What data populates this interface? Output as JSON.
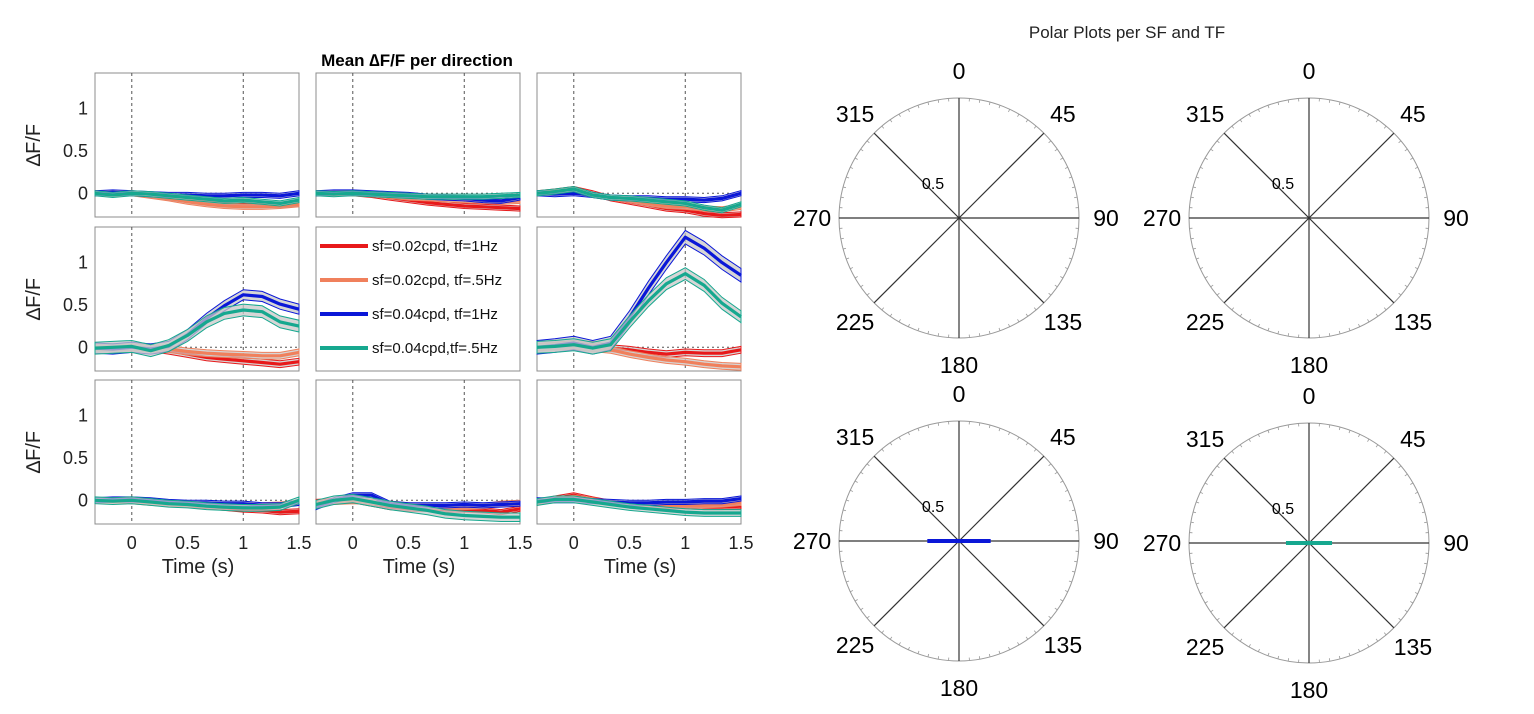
{
  "colors": {
    "sf002_tf1": "#e8191a",
    "sf002_tf05": "#f0805c",
    "sf004_tf1": "#0a17d8",
    "sf004_tf05": "#16a88f"
  },
  "chart_data": [
    {
      "type": "line",
      "title": "Mean ∆F/F per direction",
      "grid_rows": 3,
      "grid_cols": 3,
      "xlabel": "Time (s)",
      "ylabel": "∆F/F",
      "xlim": [
        -0.33,
        1.5
      ],
      "ylim": [
        -0.28,
        1.42
      ],
      "xticks": [
        "0",
        "0.5",
        "1",
        "1.5"
      ],
      "xtick_values": [
        0,
        0.5,
        1,
        1.5
      ],
      "yticks": [
        "0",
        "0.5",
        "1"
      ],
      "ytick_values": [
        0,
        0.5,
        1
      ],
      "vlines": [
        0,
        1
      ],
      "hline": 0,
      "legend_panel": [
        1,
        1
      ],
      "x": [
        -0.33,
        -0.17,
        0,
        0.17,
        0.33,
        0.5,
        0.67,
        0.83,
        1.0,
        1.17,
        1.33,
        1.5
      ],
      "series_names": [
        "sf=0.02cpd, tf=1Hz",
        "sf=0.02cpd, tf=.5Hz",
        "sf=0.04cpd, tf=1Hz",
        "sf=0.04cpd,tf=.5Hz"
      ],
      "panels": [
        {
          "row": 0,
          "col": 0,
          "series": [
            {
              "name": "sf=0.02cpd, tf=1Hz",
              "values": [
                0,
                0,
                0,
                -0.02,
                -0.05,
                -0.08,
                -0.1,
                -0.12,
                -0.13,
                -0.13,
                -0.14,
                -0.12
              ],
              "err": 0.03
            },
            {
              "name": "sf=0.02cpd, tf=.5Hz",
              "values": [
                0,
                0,
                0,
                -0.03,
                -0.06,
                -0.1,
                -0.13,
                -0.15,
                -0.16,
                -0.16,
                -0.15,
                -0.13
              ],
              "err": 0.03
            },
            {
              "name": "sf=0.04cpd, tf=1Hz",
              "values": [
                0,
                0.01,
                0,
                -0.01,
                -0.02,
                -0.02,
                -0.03,
                -0.03,
                -0.02,
                -0.02,
                -0.03,
                0
              ],
              "err": 0.03
            },
            {
              "name": "sf=0.04cpd,tf=.5Hz",
              "values": [
                0,
                -0.02,
                0,
                -0.01,
                -0.03,
                -0.05,
                -0.07,
                -0.09,
                -0.08,
                -0.1,
                -0.12,
                -0.08
              ],
              "err": 0.03
            }
          ]
        },
        {
          "row": 0,
          "col": 1,
          "series": [
            {
              "name": "sf=0.02cpd, tf=1Hz",
              "values": [
                0,
                0,
                0,
                -0.02,
                -0.05,
                -0.08,
                -0.11,
                -0.13,
                -0.15,
                -0.16,
                -0.17,
                -0.18
              ],
              "err": 0.03
            },
            {
              "name": "sf=0.02cpd, tf=.5Hz",
              "values": [
                0,
                0,
                0,
                -0.01,
                -0.03,
                -0.05,
                -0.06,
                -0.07,
                -0.08,
                -0.09,
                -0.1,
                -0.09
              ],
              "err": 0.03
            },
            {
              "name": "sf=0.04cpd, tf=1Hz",
              "values": [
                0,
                0.01,
                0.01,
                0,
                -0.01,
                -0.02,
                -0.04,
                -0.05,
                -0.06,
                -0.08,
                -0.09,
                -0.05
              ],
              "err": 0.03
            },
            {
              "name": "sf=0.04cpd,tf=.5Hz",
              "values": [
                0,
                -0.01,
                0,
                -0.01,
                -0.02,
                -0.03,
                -0.04,
                -0.04,
                -0.04,
                -0.04,
                -0.03,
                -0.02
              ],
              "err": 0.03
            }
          ]
        },
        {
          "row": 0,
          "col": 2,
          "series": [
            {
              "name": "sf=0.02cpd, tf=1Hz",
              "values": [
                0,
                0.02,
                0.05,
                0,
                -0.06,
                -0.1,
                -0.14,
                -0.18,
                -0.2,
                -0.24,
                -0.26,
                -0.25
              ],
              "err": 0.03
            },
            {
              "name": "sf=0.02cpd, tf=.5Hz",
              "values": [
                0,
                0.01,
                0.03,
                -0.02,
                -0.05,
                -0.08,
                -0.12,
                -0.15,
                -0.16,
                -0.18,
                -0.19,
                -0.16
              ],
              "err": 0.03
            },
            {
              "name": "sf=0.04cpd, tf=1Hz",
              "values": [
                0,
                -0.01,
                0,
                -0.02,
                -0.05,
                -0.06,
                -0.06,
                -0.07,
                -0.07,
                -0.08,
                -0.06,
                0
              ],
              "err": 0.03
            },
            {
              "name": "sf=0.04cpd,tf=.5Hz",
              "values": [
                0,
                0.02,
                0.05,
                -0.02,
                -0.05,
                -0.06,
                -0.08,
                -0.1,
                -0.12,
                -0.17,
                -0.2,
                -0.13
              ],
              "err": 0.03
            }
          ]
        },
        {
          "row": 1,
          "col": 0,
          "series": [
            {
              "name": "sf=0.02cpd, tf=1Hz",
              "values": [
                0,
                0,
                0,
                -0.01,
                -0.04,
                -0.08,
                -0.12,
                -0.14,
                -0.16,
                -0.18,
                -0.2,
                -0.17
              ],
              "err": 0.04
            },
            {
              "name": "sf=0.02cpd, tf=.5Hz",
              "values": [
                0,
                0,
                0,
                -0.01,
                -0.02,
                -0.05,
                -0.07,
                -0.08,
                -0.09,
                -0.1,
                -0.1,
                -0.06
              ],
              "err": 0.04
            },
            {
              "name": "sf=0.04cpd, tf=1Hz",
              "values": [
                -0.01,
                -0.02,
                0,
                -0.02,
                0.01,
                0.15,
                0.34,
                0.49,
                0.62,
                0.6,
                0.51,
                0.45
              ],
              "err": 0.06
            },
            {
              "name": "sf=0.04cpd,tf=.5Hz",
              "values": [
                -0.01,
                0,
                0.01,
                -0.04,
                0.02,
                0.14,
                0.3,
                0.4,
                0.44,
                0.42,
                0.3,
                0.25
              ],
              "err": 0.07
            }
          ]
        },
        {
          "row": 1,
          "col": 2,
          "series": [
            {
              "name": "sf=0.02cpd, tf=1Hz",
              "values": [
                0,
                0.02,
                0.04,
                0.03,
                -0.01,
                -0.03,
                -0.06,
                -0.08,
                -0.06,
                -0.07,
                -0.07,
                -0.03
              ],
              "err": 0.04
            },
            {
              "name": "sf=0.02cpd, tf=.5Hz",
              "values": [
                0,
                0.01,
                0.02,
                -0.01,
                -0.03,
                -0.08,
                -0.12,
                -0.15,
                -0.17,
                -0.2,
                -0.22,
                -0.23
              ],
              "err": 0.04
            },
            {
              "name": "sf=0.04cpd, tf=1Hz",
              "values": [
                0,
                0.02,
                0.05,
                0,
                0.05,
                0.35,
                0.7,
                1.0,
                1.3,
                1.17,
                1.0,
                0.85
              ],
              "err": 0.08
            },
            {
              "name": "sf=0.04cpd,tf=.5Hz",
              "values": [
                0,
                0.01,
                0.03,
                -0.01,
                0.03,
                0.3,
                0.55,
                0.75,
                0.87,
                0.73,
                0.52,
                0.36
              ],
              "err": 0.07
            }
          ]
        },
        {
          "row": 2,
          "col": 0,
          "series": [
            {
              "name": "sf=0.02cpd, tf=1Hz",
              "values": [
                0,
                0,
                0,
                -0.01,
                -0.03,
                -0.05,
                -0.07,
                -0.09,
                -0.11,
                -0.12,
                -0.14,
                -0.13
              ],
              "err": 0.03
            },
            {
              "name": "sf=0.02cpd, tf=.5Hz",
              "values": [
                0,
                0,
                -0.01,
                -0.03,
                -0.04,
                -0.05,
                -0.05,
                -0.06,
                -0.06,
                -0.06,
                -0.05,
                -0.03
              ],
              "err": 0.03
            },
            {
              "name": "sf=0.04cpd, tf=1Hz",
              "values": [
                0,
                0.01,
                0.01,
                0,
                -0.02,
                -0.03,
                -0.03,
                -0.04,
                -0.04,
                -0.06,
                -0.06,
                -0.03
              ],
              "err": 0.03
            },
            {
              "name": "sf=0.04cpd,tf=.5Hz",
              "values": [
                0,
                -0.01,
                0,
                -0.02,
                -0.04,
                -0.05,
                -0.07,
                -0.08,
                -0.09,
                -0.09,
                -0.08,
                0
              ],
              "err": 0.04
            }
          ]
        },
        {
          "row": 2,
          "col": 1,
          "series": [
            {
              "name": "sf=0.02cpd, tf=1Hz",
              "values": [
                -0.02,
                -0.01,
                0,
                -0.04,
                -0.08,
                -0.1,
                -0.1,
                -0.11,
                -0.11,
                -0.12,
                -0.14,
                -0.1
              ],
              "err": 0.03
            },
            {
              "name": "sf=0.02cpd, tf=.5Hz",
              "values": [
                -0.03,
                -0.02,
                -0.01,
                -0.02,
                -0.04,
                -0.06,
                -0.07,
                -0.08,
                -0.08,
                -0.07,
                -0.04,
                -0.03
              ],
              "err": 0.03
            },
            {
              "name": "sf=0.04cpd, tf=1Hz",
              "values": [
                -0.08,
                0,
                0.06,
                0.06,
                -0.04,
                -0.06,
                -0.06,
                -0.06,
                -0.05,
                -0.06,
                -0.05,
                -0.04
              ],
              "err": 0.03
            },
            {
              "name": "sf=0.04cpd,tf=.5Hz",
              "values": [
                -0.05,
                0,
                0.02,
                -0.02,
                -0.06,
                -0.09,
                -0.12,
                -0.16,
                -0.18,
                -0.19,
                -0.2,
                -0.2
              ],
              "err": 0.05
            }
          ]
        },
        {
          "row": 2,
          "col": 2,
          "series": [
            {
              "name": "sf=0.02cpd, tf=1Hz",
              "values": [
                -0.03,
                0.02,
                0.06,
                0.01,
                -0.03,
                -0.06,
                -0.07,
                -0.07,
                -0.07,
                -0.08,
                -0.08,
                -0.07
              ],
              "err": 0.03
            },
            {
              "name": "sf=0.02cpd, tf=.5Hz",
              "values": [
                -0.02,
                0,
                0.03,
                0,
                -0.03,
                -0.05,
                -0.06,
                -0.06,
                -0.06,
                -0.06,
                -0.05,
                -0.03
              ],
              "err": 0.03
            },
            {
              "name": "sf=0.04cpd, tf=1Hz",
              "values": [
                0,
                0,
                0,
                -0.01,
                -0.02,
                -0.03,
                -0.03,
                -0.02,
                -0.02,
                -0.01,
                -0.01,
                0.02
              ],
              "err": 0.03
            },
            {
              "name": "sf=0.04cpd,tf=.5Hz",
              "values": [
                -0.02,
                0.01,
                0.01,
                -0.02,
                -0.05,
                -0.08,
                -0.1,
                -0.12,
                -0.14,
                -0.15,
                -0.15,
                -0.15
              ],
              "err": 0.04
            }
          ]
        }
      ]
    },
    {
      "type": "polar",
      "title": "Polar Plots per SF and TF",
      "angle_labels": [
        "0",
        "45",
        "90",
        "135",
        "180",
        "225",
        "270",
        "315"
      ],
      "angle_values": [
        0,
        45,
        90,
        135,
        180,
        225,
        270,
        315
      ],
      "rlim": [
        0,
        1.25
      ],
      "r_tick_label": "0.5",
      "r_tick_value": 0.5,
      "subplots": [
        {
          "row": 0,
          "col": 0,
          "series_name": "sf=0.02cpd, tf=1Hz",
          "show_r_tick": true,
          "segment": null
        },
        {
          "row": 0,
          "col": 1,
          "series_name": "sf=0.02cpd, tf=.5Hz",
          "show_r_tick": true,
          "segment": null
        },
        {
          "row": 1,
          "col": 0,
          "series_name": "sf=0.04cpd, tf=1Hz",
          "show_r_tick": true,
          "segment": {
            "angles": [
              90,
              270
            ],
            "r": 0.33
          }
        },
        {
          "row": 1,
          "col": 1,
          "series_name": "sf=0.04cpd,tf=.5Hz",
          "show_r_tick": true,
          "segment": {
            "angles": [
              90,
              270
            ],
            "r": 0.24
          }
        }
      ]
    }
  ]
}
